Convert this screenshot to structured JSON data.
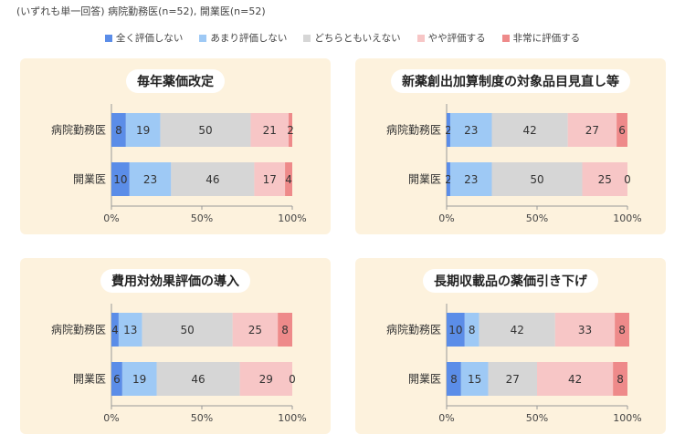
{
  "note": "(いずれも単一回答)  病院勤務医(n=52), 開業医(n=52)",
  "legend": [
    {
      "label": "全く評価しない",
      "color": "#5b8de8"
    },
    {
      "label": "あまり評価しない",
      "color": "#9ec9f5"
    },
    {
      "label": "どちらともいえない",
      "color": "#d6d6d6"
    },
    {
      "label": "やや評価する",
      "color": "#f7c6c6"
    },
    {
      "label": "非常に評価する",
      "color": "#ee8a8a"
    }
  ],
  "chart_data": [
    {
      "type": "bar",
      "stacked": true,
      "orientation": "horizontal",
      "title": "毎年薬価改定",
      "categories": [
        "病院勤務医",
        "開業医"
      ],
      "series": [
        {
          "name": "全く評価しない",
          "values": [
            8,
            10
          ]
        },
        {
          "name": "あまり評価しない",
          "values": [
            19,
            23
          ]
        },
        {
          "name": "どちらともいえない",
          "values": [
            50,
            46
          ]
        },
        {
          "name": "やや評価する",
          "values": [
            21,
            17
          ]
        },
        {
          "name": "非常に評価する",
          "values": [
            2,
            4
          ]
        }
      ],
      "xlim": [
        0,
        100
      ],
      "xticks": [
        "0%",
        "50%",
        "100%"
      ]
    },
    {
      "type": "bar",
      "stacked": true,
      "orientation": "horizontal",
      "title": "新薬創出加算制度の対象品目見直し等",
      "categories": [
        "病院勤務医",
        "開業医"
      ],
      "series": [
        {
          "name": "全く評価しない",
          "values": [
            2,
            2
          ]
        },
        {
          "name": "あまり評価しない",
          "values": [
            23,
            23
          ]
        },
        {
          "name": "どちらともいえない",
          "values": [
            42,
            50
          ]
        },
        {
          "name": "やや評価する",
          "values": [
            27,
            25
          ]
        },
        {
          "name": "非常に評価する",
          "values": [
            6,
            0
          ]
        }
      ],
      "xlim": [
        0,
        100
      ],
      "xticks": [
        "0%",
        "50%",
        "100%"
      ]
    },
    {
      "type": "bar",
      "stacked": true,
      "orientation": "horizontal",
      "title": "費用対効果評価の導入",
      "categories": [
        "病院勤務医",
        "開業医"
      ],
      "series": [
        {
          "name": "全く評価しない",
          "values": [
            4,
            6
          ]
        },
        {
          "name": "あまり評価しない",
          "values": [
            13,
            19
          ]
        },
        {
          "name": "どちらともいえない",
          "values": [
            50,
            46
          ]
        },
        {
          "name": "やや評価する",
          "values": [
            25,
            29
          ]
        },
        {
          "name": "非常に評価する",
          "values": [
            8,
            0
          ]
        }
      ],
      "xlim": [
        0,
        100
      ],
      "xticks": [
        "0%",
        "50%",
        "100%"
      ]
    },
    {
      "type": "bar",
      "stacked": true,
      "orientation": "horizontal",
      "title": "長期収載品の薬価引き下げ",
      "categories": [
        "病院勤務医",
        "開業医"
      ],
      "series": [
        {
          "name": "全く評価しない",
          "values": [
            10,
            8
          ]
        },
        {
          "name": "あまり評価しない",
          "values": [
            8,
            15
          ]
        },
        {
          "name": "どちらともいえない",
          "values": [
            42,
            27
          ]
        },
        {
          "name": "やや評価する",
          "values": [
            33,
            42
          ]
        },
        {
          "name": "非常に評価する",
          "values": [
            8,
            8
          ]
        }
      ],
      "xlim": [
        0,
        100
      ],
      "xticks": [
        "0%",
        "50%",
        "100%"
      ]
    }
  ]
}
